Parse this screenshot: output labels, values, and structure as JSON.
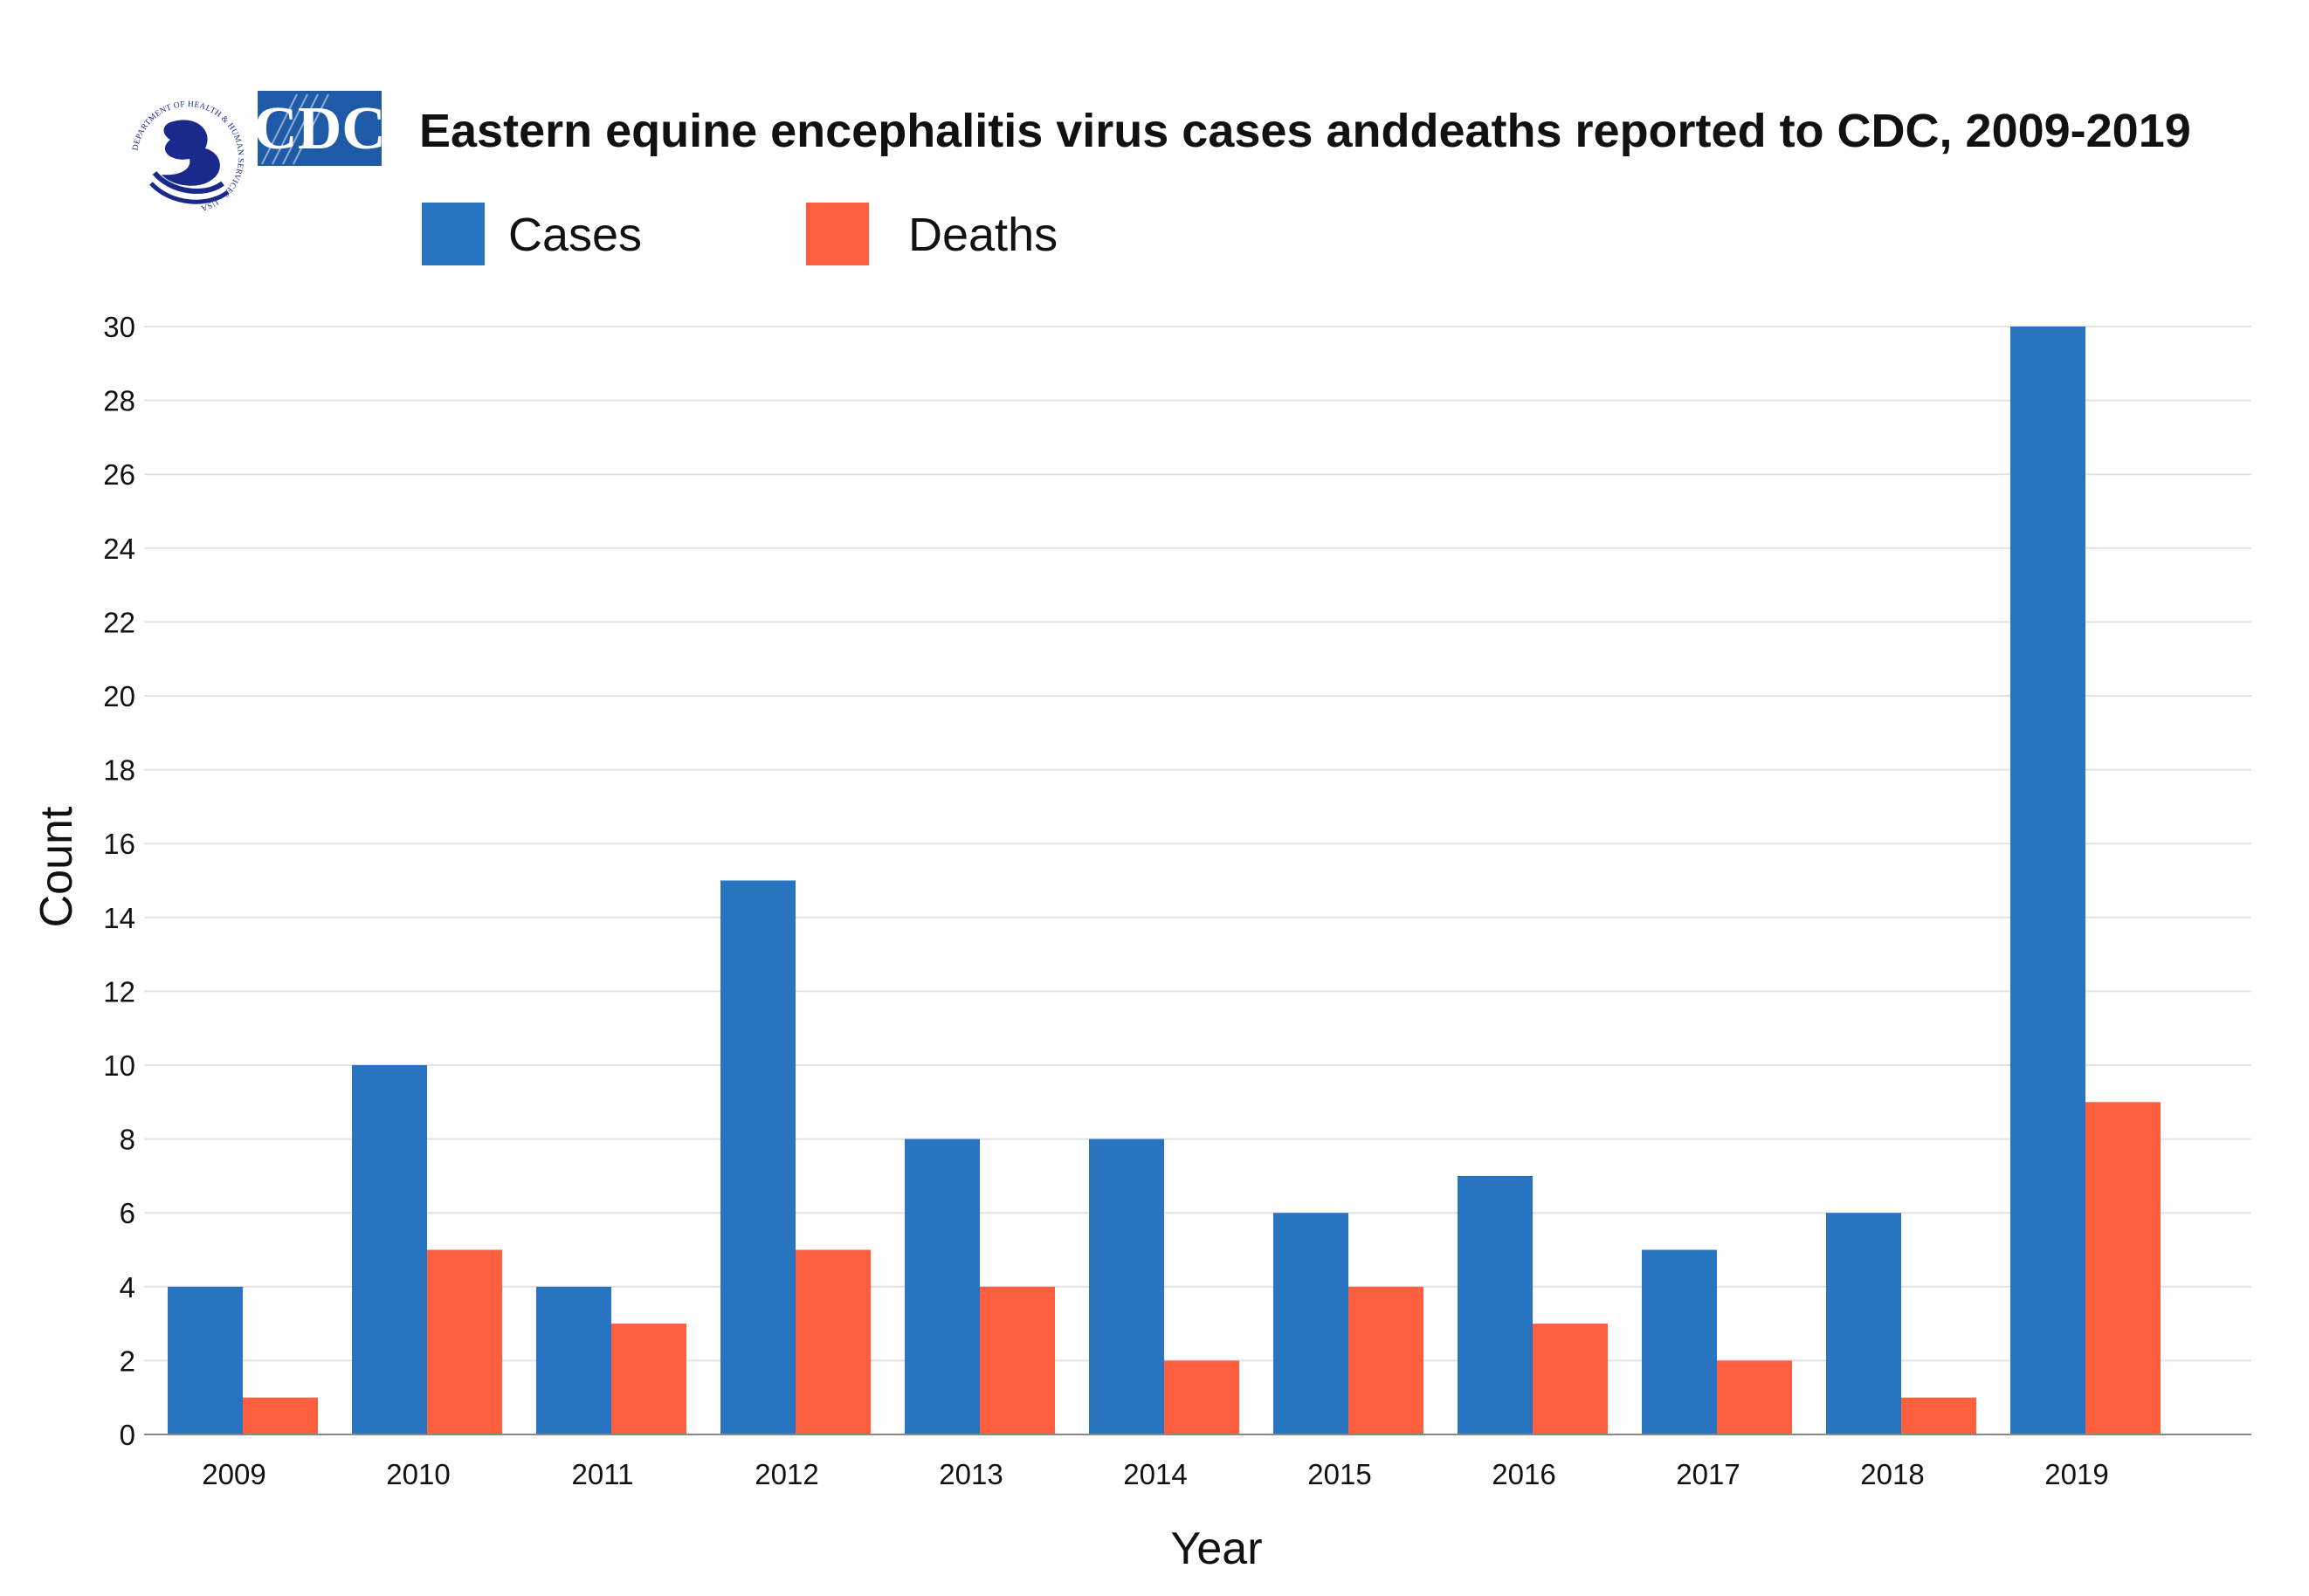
{
  "logos": {
    "hhs_seal_text": "DEPARTMENT OF HEALTH & HUMAN SERVICES · USA",
    "cdc_text": "CDC"
  },
  "chart_data": {
    "type": "bar",
    "title": "Eastern equine encephalitis virus cases anddeaths reported to CDC, 2009-2019",
    "xlabel": "Year",
    "ylabel": "Count",
    "ylim": [
      0,
      30
    ],
    "yticks": [
      0,
      2,
      4,
      6,
      8,
      10,
      12,
      14,
      16,
      18,
      20,
      22,
      24,
      26,
      28,
      30
    ],
    "categories": [
      "2009",
      "2010",
      "2011",
      "2012",
      "2013",
      "2014",
      "2015",
      "2016",
      "2017",
      "2018",
      "2019"
    ],
    "series": [
      {
        "name": "Cases",
        "color": "#2874c0",
        "values": [
          4,
          10,
          4,
          15,
          8,
          8,
          6,
          7,
          5,
          6,
          30
        ]
      },
      {
        "name": "Deaths",
        "color": "#fe5f3f",
        "values": [
          1,
          5,
          3,
          5,
          4,
          2,
          4,
          3,
          2,
          1,
          9
        ]
      }
    ],
    "grid": true,
    "legend_position": "top-left"
  }
}
